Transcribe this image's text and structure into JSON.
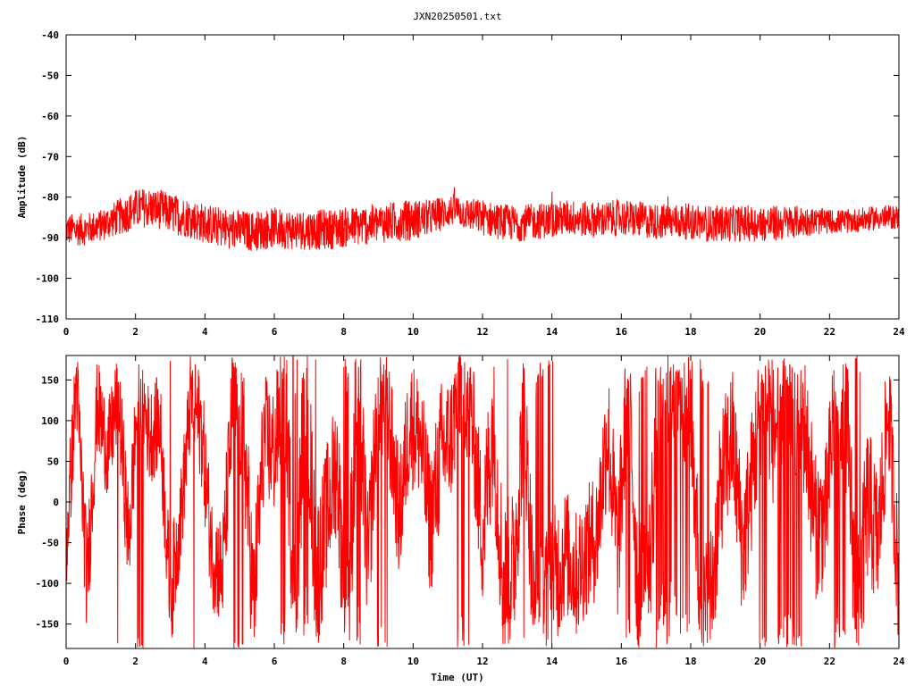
{
  "figure": {
    "title": "JXN20250501.txt",
    "xlabel": "Time (UT)"
  },
  "chart_data": [
    {
      "type": "line",
      "title": "JXN20250501.txt",
      "xlabel": "",
      "ylabel": "Amplitude (dB)",
      "xlim": [
        0,
        24
      ],
      "ylim": [
        -110,
        -40
      ],
      "xticks": [
        "0",
        "2",
        "4",
        "6",
        "8",
        "10",
        "12",
        "14",
        "16",
        "18",
        "20",
        "22",
        "24"
      ],
      "yticks": [
        "-40",
        "-50",
        "-60",
        "-70",
        "-80",
        "-90",
        "-100",
        "-110"
      ],
      "grid": false,
      "series": [
        {
          "color": "#ff0000",
          "x": [
            0,
            0.5,
            1,
            1.5,
            2,
            2.3,
            2.7,
            3,
            3.5,
            4,
            4.5,
            5,
            5.3,
            5.7,
            6,
            6.5,
            7,
            7.5,
            8,
            8.5,
            9,
            9.5,
            10,
            10.5,
            11,
            11.2,
            11.5,
            12,
            12.5,
            13,
            13.5,
            14,
            14.5,
            15,
            15.5,
            16,
            16.5,
            17,
            17.5,
            18,
            18.5,
            19,
            19.5,
            20,
            20.5,
            21,
            21.5,
            22,
            22.5,
            23,
            23.5,
            24
          ],
          "y": [
            -88,
            -88,
            -87,
            -85,
            -83,
            -82.5,
            -83,
            -84,
            -85,
            -86.5,
            -87.5,
            -88,
            -88.5,
            -88,
            -87.5,
            -88,
            -88,
            -88,
            -87.5,
            -87,
            -86.5,
            -86,
            -85.5,
            -85,
            -83.5,
            -83,
            -84,
            -85,
            -86,
            -86.5,
            -86,
            -85.5,
            -85,
            -85.5,
            -85.5,
            -85,
            -85.5,
            -86,
            -86,
            -86,
            -86.5,
            -86.5,
            -86.5,
            -86.5,
            -86.5,
            -86,
            -86,
            -86,
            -86,
            -85.5,
            -85,
            -85
          ],
          "spread": [
            4,
            4,
            4,
            4.5,
            5,
            5,
            5,
            5,
            5,
            5,
            5,
            5,
            5,
            5,
            5,
            5,
            5,
            5,
            5,
            5,
            5,
            5,
            5,
            4.5,
            4,
            4,
            4,
            4.5,
            4.5,
            4.5,
            4.5,
            4.5,
            4.5,
            4.5,
            4.5,
            4.5,
            4.5,
            4.5,
            4.5,
            4.5,
            4.5,
            4.5,
            4.5,
            4.5,
            4.5,
            4,
            3.5,
            3,
            3,
            3,
            3,
            3
          ]
        }
      ]
    },
    {
      "type": "line",
      "xlabel": "Time (UT)",
      "ylabel": "Phase (deg)",
      "xlim": [
        0,
        24
      ],
      "ylim": [
        -180,
        180
      ],
      "xticks": [
        "0",
        "2",
        "4",
        "6",
        "8",
        "10",
        "12",
        "14",
        "16",
        "18",
        "20",
        "22",
        "24"
      ],
      "yticks": [
        "150",
        "100",
        "50",
        "0",
        "-50",
        "-100",
        "-150"
      ],
      "ytick_values": [
        150,
        100,
        50,
        0,
        -50,
        -100,
        -150
      ],
      "grid": false,
      "series": [
        {
          "color": "#ff0000",
          "x": [
            0,
            0.3,
            0.6,
            0.9,
            1.2,
            1.5,
            1.8,
            2.1,
            2.4,
            2.7,
            3.0,
            3.3,
            3.6,
            3.9,
            4.2,
            4.5,
            4.8,
            5.1,
            5.4,
            5.7,
            6.0,
            6.3,
            6.6,
            6.9,
            7.2,
            7.5,
            7.8,
            8.1,
            8.4,
            8.7,
            9.0,
            9.3,
            9.6,
            9.9,
            10.2,
            10.5,
            10.8,
            11.1,
            11.4,
            11.7,
            12.0,
            12.3,
            12.6,
            12.9,
            13.2,
            13.5,
            13.8,
            14.1,
            14.4,
            14.7,
            15.0,
            15.3,
            15.6,
            15.9,
            16.2,
            16.5,
            16.8,
            17.1,
            17.4,
            17.7,
            18.0,
            18.3,
            18.6,
            18.9,
            19.2,
            19.5,
            19.8,
            20.1,
            20.4,
            20.7,
            21.0,
            21.3,
            21.6,
            21.9,
            22.2,
            22.5,
            22.8,
            23.1,
            23.4,
            23.7,
            24.0
          ],
          "y": [
            -60,
            150,
            -100,
            120,
            60,
            130,
            -50,
            150,
            80,
            100,
            -120,
            -20,
            130,
            90,
            -60,
            -90,
            120,
            100,
            -130,
            80,
            60,
            150,
            -150,
            170,
            -100,
            -20,
            50,
            -170,
            160,
            -80,
            140,
            100,
            -20,
            100,
            80,
            -30,
            60,
            80,
            160,
            100,
            -40,
            100,
            -100,
            -80,
            120,
            -150,
            -120,
            -90,
            -60,
            -90,
            -60,
            -40,
            90,
            -60,
            150,
            -130,
            -90,
            160,
            170,
            150,
            120,
            -150,
            -110,
            30,
            80,
            -60,
            40,
            150,
            80,
            140,
            120,
            90,
            -30,
            -20,
            160,
            90,
            -150,
            0,
            -50,
            120,
            -110
          ],
          "spread": [
            60,
            60,
            70,
            60,
            60,
            60,
            70,
            60,
            60,
            60,
            70,
            60,
            60,
            70,
            70,
            70,
            80,
            90,
            90,
            80,
            80,
            90,
            100,
            100,
            100,
            90,
            90,
            100,
            100,
            90,
            80,
            80,
            80,
            80,
            80,
            90,
            90,
            80,
            80,
            80,
            90,
            100,
            100,
            100,
            90,
            90,
            90,
            90,
            80,
            80,
            80,
            80,
            90,
            90,
            90,
            100,
            100,
            100,
            100,
            90,
            90,
            90,
            90,
            90,
            90,
            90,
            90,
            90,
            90,
            90,
            90,
            90,
            90,
            90,
            90,
            100,
            100,
            100,
            90,
            80,
            80
          ],
          "wraps": true
        }
      ]
    }
  ]
}
